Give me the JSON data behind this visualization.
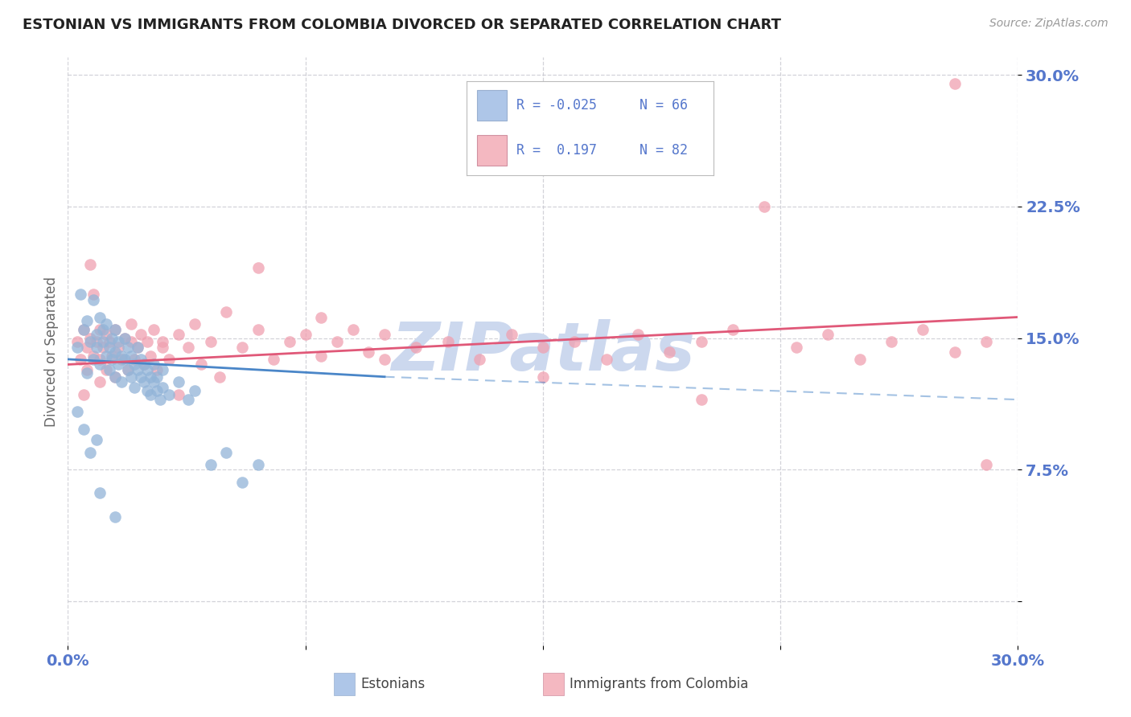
{
  "title": "ESTONIAN VS IMMIGRANTS FROM COLOMBIA DIVORCED OR SEPARATED CORRELATION CHART",
  "source": "Source: ZipAtlas.com",
  "ylabel": "Divorced or Separated",
  "xlim": [
    0.0,
    0.3
  ],
  "ylim": [
    -0.025,
    0.31
  ],
  "yticks": [
    0.0,
    0.075,
    0.15,
    0.225,
    0.3
  ],
  "ytick_labels": [
    "",
    "7.5%",
    "15.0%",
    "22.5%",
    "30.0%"
  ],
  "xticks": [
    0.0,
    0.075,
    0.15,
    0.225,
    0.3
  ],
  "xtick_labels": [
    "0.0%",
    "",
    "",
    "",
    "30.0%"
  ],
  "estonian_color": "#92b4d8",
  "colombia_color": "#f0a0b0",
  "trend_estonian_color": "#4a86c8",
  "trend_colombia_color": "#e05878",
  "background_color": "#ffffff",
  "grid_color": "#c8c8d0",
  "tick_label_color": "#5577cc",
  "title_color": "#222222",
  "watermark": "ZIPatlas",
  "watermark_color": "#ccd8ee",
  "legend_box_color": "#aec6e8",
  "legend_pink_color": "#f4b8c1",
  "R_estonian": -0.025,
  "R_colombia": 0.197,
  "estonian_points": [
    [
      0.003,
      0.145
    ],
    [
      0.004,
      0.175
    ],
    [
      0.005,
      0.155
    ],
    [
      0.006,
      0.13
    ],
    [
      0.006,
      0.16
    ],
    [
      0.007,
      0.148
    ],
    [
      0.008,
      0.172
    ],
    [
      0.008,
      0.138
    ],
    [
      0.009,
      0.152
    ],
    [
      0.009,
      0.145
    ],
    [
      0.01,
      0.162
    ],
    [
      0.01,
      0.135
    ],
    [
      0.011,
      0.148
    ],
    [
      0.011,
      0.155
    ],
    [
      0.012,
      0.14
    ],
    [
      0.012,
      0.158
    ],
    [
      0.013,
      0.145
    ],
    [
      0.013,
      0.132
    ],
    [
      0.014,
      0.15
    ],
    [
      0.014,
      0.138
    ],
    [
      0.015,
      0.142
    ],
    [
      0.015,
      0.128
    ],
    [
      0.015,
      0.155
    ],
    [
      0.016,
      0.135
    ],
    [
      0.016,
      0.148
    ],
    [
      0.017,
      0.14
    ],
    [
      0.017,
      0.125
    ],
    [
      0.018,
      0.138
    ],
    [
      0.018,
      0.15
    ],
    [
      0.019,
      0.132
    ],
    [
      0.019,
      0.145
    ],
    [
      0.02,
      0.128
    ],
    [
      0.02,
      0.14
    ],
    [
      0.021,
      0.135
    ],
    [
      0.021,
      0.122
    ],
    [
      0.022,
      0.132
    ],
    [
      0.022,
      0.145
    ],
    [
      0.023,
      0.128
    ],
    [
      0.023,
      0.138
    ],
    [
      0.024,
      0.125
    ],
    [
      0.024,
      0.135
    ],
    [
      0.025,
      0.12
    ],
    [
      0.025,
      0.132
    ],
    [
      0.026,
      0.128
    ],
    [
      0.026,
      0.118
    ],
    [
      0.027,
      0.125
    ],
    [
      0.027,
      0.135
    ],
    [
      0.028,
      0.12
    ],
    [
      0.028,
      0.128
    ],
    [
      0.029,
      0.115
    ],
    [
      0.03,
      0.122
    ],
    [
      0.03,
      0.132
    ],
    [
      0.032,
      0.118
    ],
    [
      0.035,
      0.125
    ],
    [
      0.038,
      0.115
    ],
    [
      0.04,
      0.12
    ],
    [
      0.045,
      0.078
    ],
    [
      0.05,
      0.085
    ],
    [
      0.055,
      0.068
    ],
    [
      0.06,
      0.078
    ],
    [
      0.003,
      0.108
    ],
    [
      0.005,
      0.098
    ],
    [
      0.007,
      0.085
    ],
    [
      0.009,
      0.092
    ],
    [
      0.01,
      0.062
    ],
    [
      0.015,
      0.048
    ]
  ],
  "colombia_points": [
    [
      0.003,
      0.148
    ],
    [
      0.004,
      0.138
    ],
    [
      0.005,
      0.155
    ],
    [
      0.006,
      0.145
    ],
    [
      0.006,
      0.132
    ],
    [
      0.007,
      0.15
    ],
    [
      0.008,
      0.175
    ],
    [
      0.008,
      0.14
    ],
    [
      0.009,
      0.148
    ],
    [
      0.01,
      0.155
    ],
    [
      0.01,
      0.138
    ],
    [
      0.011,
      0.145
    ],
    [
      0.012,
      0.152
    ],
    [
      0.012,
      0.132
    ],
    [
      0.013,
      0.148
    ],
    [
      0.014,
      0.14
    ],
    [
      0.015,
      0.155
    ],
    [
      0.015,
      0.128
    ],
    [
      0.016,
      0.145
    ],
    [
      0.017,
      0.138
    ],
    [
      0.018,
      0.15
    ],
    [
      0.019,
      0.132
    ],
    [
      0.02,
      0.148
    ],
    [
      0.02,
      0.158
    ],
    [
      0.021,
      0.138
    ],
    [
      0.022,
      0.145
    ],
    [
      0.023,
      0.152
    ],
    [
      0.024,
      0.135
    ],
    [
      0.025,
      0.148
    ],
    [
      0.026,
      0.14
    ],
    [
      0.027,
      0.155
    ],
    [
      0.028,
      0.132
    ],
    [
      0.03,
      0.148
    ],
    [
      0.032,
      0.138
    ],
    [
      0.035,
      0.152
    ],
    [
      0.035,
      0.118
    ],
    [
      0.038,
      0.145
    ],
    [
      0.04,
      0.158
    ],
    [
      0.042,
      0.135
    ],
    [
      0.045,
      0.148
    ],
    [
      0.048,
      0.128
    ],
    [
      0.05,
      0.165
    ],
    [
      0.055,
      0.145
    ],
    [
      0.06,
      0.155
    ],
    [
      0.065,
      0.138
    ],
    [
      0.07,
      0.148
    ],
    [
      0.075,
      0.152
    ],
    [
      0.08,
      0.14
    ],
    [
      0.085,
      0.148
    ],
    [
      0.09,
      0.155
    ],
    [
      0.095,
      0.142
    ],
    [
      0.1,
      0.152
    ],
    [
      0.11,
      0.145
    ],
    [
      0.12,
      0.148
    ],
    [
      0.13,
      0.138
    ],
    [
      0.14,
      0.152
    ],
    [
      0.15,
      0.145
    ],
    [
      0.16,
      0.148
    ],
    [
      0.17,
      0.138
    ],
    [
      0.18,
      0.152
    ],
    [
      0.19,
      0.142
    ],
    [
      0.2,
      0.148
    ],
    [
      0.21,
      0.155
    ],
    [
      0.22,
      0.225
    ],
    [
      0.23,
      0.145
    ],
    [
      0.24,
      0.152
    ],
    [
      0.25,
      0.138
    ],
    [
      0.26,
      0.148
    ],
    [
      0.27,
      0.155
    ],
    [
      0.28,
      0.142
    ],
    [
      0.29,
      0.148
    ],
    [
      0.005,
      0.118
    ],
    [
      0.01,
      0.125
    ],
    [
      0.03,
      0.145
    ],
    [
      0.06,
      0.19
    ],
    [
      0.08,
      0.162
    ],
    [
      0.1,
      0.138
    ],
    [
      0.15,
      0.128
    ],
    [
      0.2,
      0.115
    ],
    [
      0.28,
      0.295
    ],
    [
      0.29,
      0.078
    ],
    [
      0.007,
      0.192
    ]
  ],
  "trend_e_x0": 0.0,
  "trend_e_y0": 0.138,
  "trend_e_x1": 0.1,
  "trend_e_y1": 0.128,
  "trend_e_dash_x0": 0.1,
  "trend_e_dash_y0": 0.128,
  "trend_e_dash_x1": 0.3,
  "trend_e_dash_y1": 0.115,
  "trend_c_x0": 0.0,
  "trend_c_y0": 0.135,
  "trend_c_x1": 0.3,
  "trend_c_y1": 0.162
}
